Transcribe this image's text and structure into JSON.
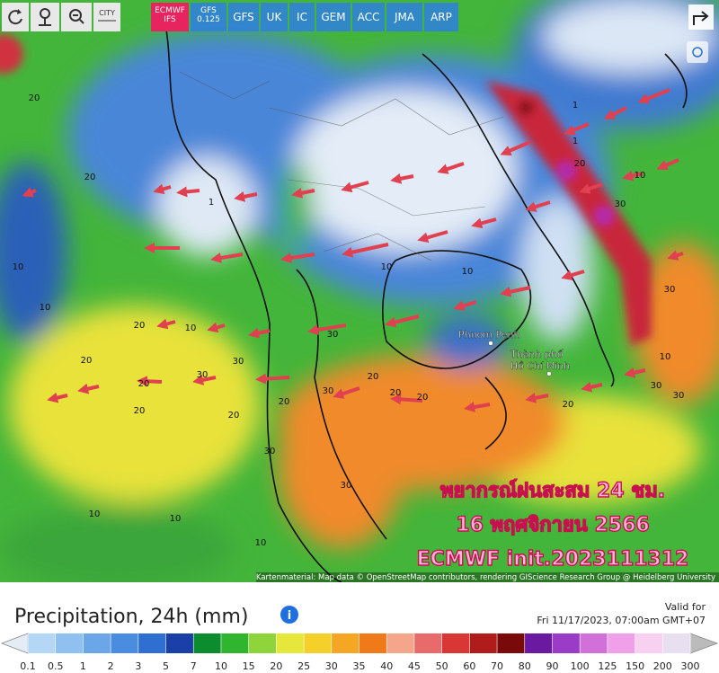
{
  "toolbar": {
    "city": "CITY",
    "active": 0,
    "models": [
      [
        "ECMWF",
        "IFS"
      ],
      [
        "GFS",
        "0.125"
      ],
      [
        "GFS"
      ],
      [
        "UK"
      ],
      [
        "IC"
      ],
      [
        "GEM"
      ],
      [
        "ACC"
      ],
      [
        "JMA"
      ],
      [
        "ARP"
      ]
    ]
  },
  "map": {
    "overlay": [
      "พยากรณ์ฝนสะสม 24 ชม.",
      "16 พฤศจิกายน 2566",
      "ECMWF init.2023111312"
    ],
    "places": [
      "Phnom Penh",
      "Thành phố",
      "Hồ Chí Minh"
    ],
    "contour_labels": [
      20,
      20,
      10,
      10,
      20,
      10,
      20,
      30,
      20,
      30,
      20,
      20,
      30,
      20,
      20,
      30,
      20,
      30,
      30,
      10,
      10,
      10,
      10,
      10,
      20,
      30,
      30,
      10,
      30,
      20,
      10,
      30,
      1,
      1,
      1,
      20
    ],
    "attribution": "Kartenmaterial: Map data © OpenStreetMap contributors, rendering GIScience Research Group @ Heidelberg University"
  },
  "footer": {
    "title": "Precipitation, 24h (mm)",
    "valid_label": "Valid for",
    "valid_time": "Fri 11/17/2023, 07:00am GMT+07"
  },
  "legend": {
    "ticks": [
      0.1,
      0.5,
      1,
      2,
      3,
      5,
      7,
      10,
      15,
      20,
      25,
      30,
      35,
      40,
      45,
      50,
      60,
      70,
      80,
      90,
      100,
      125,
      150,
      200,
      300
    ],
    "colors": [
      "#b4d7f5",
      "#8fc0ef",
      "#6aa6e8",
      "#4a8de0",
      "#2f6fd2",
      "#1b3fa8",
      "#0b8c2e",
      "#2fb52e",
      "#8fd43a",
      "#e5e83a",
      "#f5d02a",
      "#f5a623",
      "#f07a1a",
      "#f4a58a",
      "#e86a6a",
      "#d93636",
      "#b01c1c",
      "#7a0a0a",
      "#6a1aa0",
      "#9a3cc8",
      "#d070d8",
      "#f0a0e8",
      "#f8d0f0",
      "#e8e0f0"
    ]
  }
}
